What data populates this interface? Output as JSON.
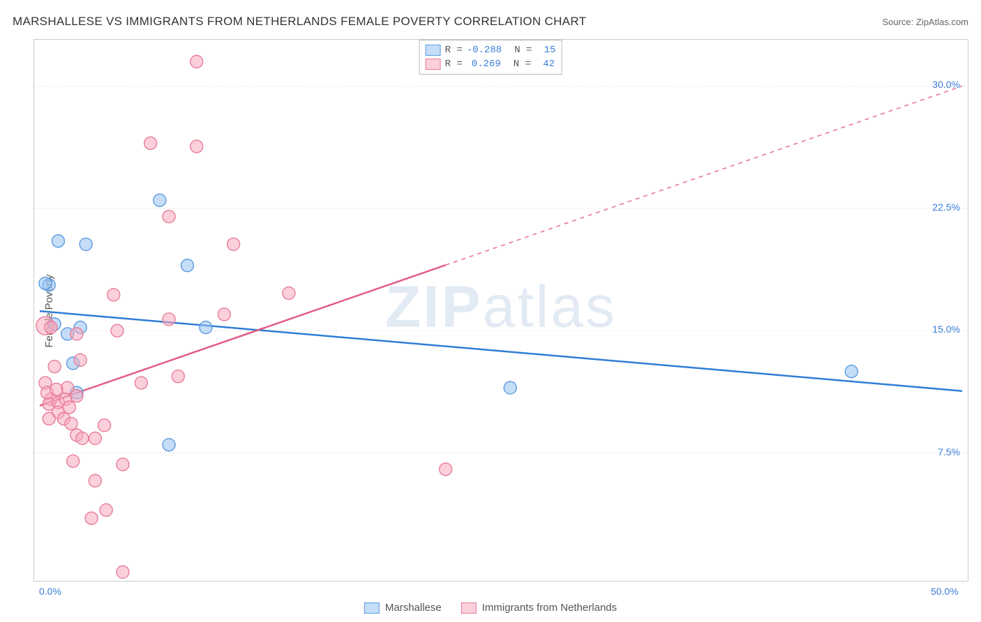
{
  "title": "MARSHALLESE VS IMMIGRANTS FROM NETHERLANDS FEMALE POVERTY CORRELATION CHART",
  "source_label": "Source: ZipAtlas.com",
  "watermark": "ZIPatlas",
  "y_axis_label": "Female Poverty",
  "chart": {
    "type": "scatter-correlation",
    "xlim": [
      0,
      50
    ],
    "ylim": [
      0,
      32.5
    ],
    "x_ticks": [
      {
        "value": 0,
        "label": "0.0%"
      },
      {
        "value": 50,
        "label": "50.0%"
      }
    ],
    "y_ticks": [
      {
        "value": 7.5,
        "label": "7.5%"
      },
      {
        "value": 15.0,
        "label": "15.0%"
      },
      {
        "value": 22.5,
        "label": "22.5%"
      },
      {
        "value": 30.0,
        "label": "30.0%"
      }
    ],
    "grid_color": "#e8e8e8",
    "grid_dash": "3,3",
    "background_color": "#ffffff",
    "border_color": "#cccccc",
    "series": [
      {
        "name": "Marshallese",
        "legend_label": "Marshallese",
        "point_fill": "rgba(150, 193, 240, 0.55)",
        "point_stroke": "#5a9ae0",
        "trend_color": "#2f7dd6",
        "trend_solid_to_x": 50,
        "R": "-0.288",
        "N": "15",
        "trend_start_y": 16.2,
        "trend_end_y": 11.3,
        "marker_radius": 9,
        "points": [
          {
            "x": 0.5,
            "y": 17.8
          },
          {
            "x": 1.0,
            "y": 20.5
          },
          {
            "x": 2.5,
            "y": 20.3
          },
          {
            "x": 6.5,
            "y": 23.0
          },
          {
            "x": 1.5,
            "y": 14.8
          },
          {
            "x": 1.8,
            "y": 13.0
          },
          {
            "x": 2.2,
            "y": 15.2
          },
          {
            "x": 2.0,
            "y": 11.2
          },
          {
            "x": 8.0,
            "y": 19.0
          },
          {
            "x": 9.0,
            "y": 15.2
          },
          {
            "x": 7.0,
            "y": 8.0
          },
          {
            "x": 25.5,
            "y": 11.5
          },
          {
            "x": 44.0,
            "y": 12.5
          },
          {
            "x": 0.8,
            "y": 15.4
          },
          {
            "x": 0.3,
            "y": 17.9
          }
        ]
      },
      {
        "name": "Immigrants from Netherlands",
        "legend_label": "Immigrants from Netherlands",
        "point_fill": "rgba(248, 170, 190, 0.55)",
        "point_stroke": "#e87b9a",
        "trend_color": "#e35b86",
        "trend_solid_to_x": 22,
        "R": "0.269",
        "N": "42",
        "trend_start_y": 10.4,
        "trend_end_y": 30.0,
        "marker_radius": 9,
        "points": [
          {
            "x": 8.5,
            "y": 31.5
          },
          {
            "x": 6.0,
            "y": 26.5
          },
          {
            "x": 8.5,
            "y": 26.3
          },
          {
            "x": 7.0,
            "y": 22.0
          },
          {
            "x": 10.5,
            "y": 20.3
          },
          {
            "x": 4.0,
            "y": 17.2
          },
          {
            "x": 0.3,
            "y": 15.3,
            "r": 13
          },
          {
            "x": 0.6,
            "y": 15.2
          },
          {
            "x": 2.0,
            "y": 14.8
          },
          {
            "x": 4.2,
            "y": 15.0
          },
          {
            "x": 7.0,
            "y": 15.7
          },
          {
            "x": 2.2,
            "y": 13.2
          },
          {
            "x": 0.3,
            "y": 11.8
          },
          {
            "x": 0.6,
            "y": 10.8
          },
          {
            "x": 5.5,
            "y": 11.8
          },
          {
            "x": 7.5,
            "y": 12.2
          },
          {
            "x": 0.5,
            "y": 10.5
          },
          {
            "x": 1.0,
            "y": 10.6
          },
          {
            "x": 1.4,
            "y": 10.8
          },
          {
            "x": 1.5,
            "y": 11.5
          },
          {
            "x": 2.0,
            "y": 11.0
          },
          {
            "x": 1.0,
            "y": 10.0
          },
          {
            "x": 1.3,
            "y": 9.6
          },
          {
            "x": 1.7,
            "y": 9.3
          },
          {
            "x": 3.5,
            "y": 9.2
          },
          {
            "x": 2.0,
            "y": 8.6
          },
          {
            "x": 2.3,
            "y": 8.4
          },
          {
            "x": 3.0,
            "y": 8.4
          },
          {
            "x": 1.8,
            "y": 7.0
          },
          {
            "x": 4.5,
            "y": 6.8
          },
          {
            "x": 3.0,
            "y": 5.8
          },
          {
            "x": 3.6,
            "y": 4.0
          },
          {
            "x": 2.8,
            "y": 3.5
          },
          {
            "x": 4.5,
            "y": 0.2
          },
          {
            "x": 13.5,
            "y": 17.3
          },
          {
            "x": 22.0,
            "y": 6.5
          },
          {
            "x": 10.0,
            "y": 16.0
          },
          {
            "x": 0.4,
            "y": 11.2
          },
          {
            "x": 0.9,
            "y": 11.4
          },
          {
            "x": 1.6,
            "y": 10.3
          },
          {
            "x": 0.5,
            "y": 9.6
          },
          {
            "x": 0.8,
            "y": 12.8
          }
        ]
      }
    ]
  }
}
